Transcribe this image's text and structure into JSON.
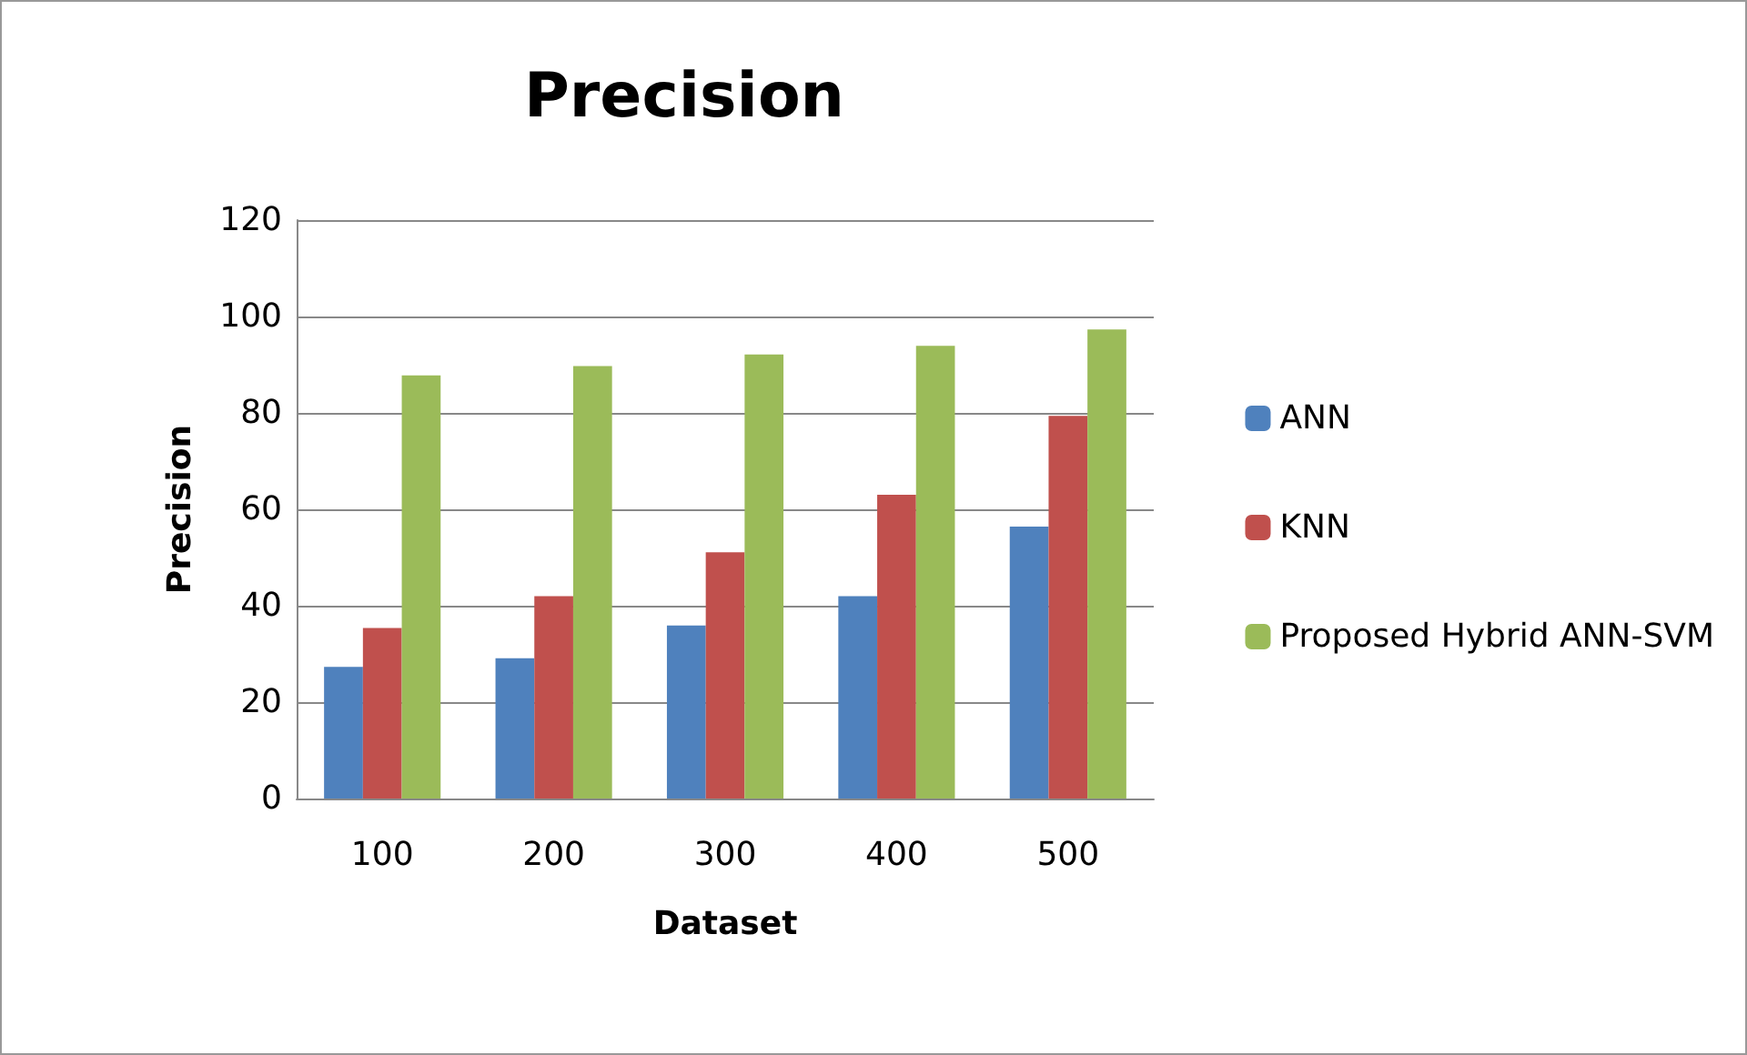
{
  "chart_data": {
    "type": "bar",
    "title": "Precision",
    "xlabel": "Dataset",
    "ylabel": "Precision",
    "categories": [
      "100",
      "200",
      "300",
      "400",
      "500"
    ],
    "series": [
      {
        "name": "ANN",
        "color": "#4f81bd",
        "values": [
          27.3,
          29.1,
          35.9,
          42,
          56.4
        ]
      },
      {
        "name": "KNN",
        "color": "#c0504d",
        "values": [
          35.4,
          42,
          51.1,
          63,
          79.4
        ]
      },
      {
        "name": "Proposed Hybrid ANN-SVM",
        "color": "#9bbb59",
        "values": [
          87.8,
          89.7,
          92.1,
          93.9,
          97.3
        ]
      }
    ],
    "ylim": [
      0,
      120
    ],
    "yticks": [
      0,
      20,
      40,
      60,
      80,
      100,
      120
    ],
    "grid": "y",
    "legend": "right"
  }
}
